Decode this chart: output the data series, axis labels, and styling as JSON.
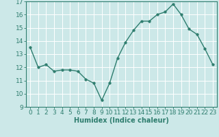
{
  "x": [
    0,
    1,
    2,
    3,
    4,
    5,
    6,
    7,
    8,
    9,
    10,
    11,
    12,
    13,
    14,
    15,
    16,
    17,
    18,
    19,
    20,
    21,
    22,
    23
  ],
  "y": [
    13.5,
    12.0,
    12.2,
    11.7,
    11.8,
    11.8,
    11.7,
    11.1,
    10.8,
    9.5,
    10.8,
    12.7,
    13.9,
    14.8,
    15.5,
    15.5,
    16.0,
    16.2,
    16.8,
    16.0,
    14.9,
    14.5,
    13.4,
    12.2
  ],
  "ylim": [
    9,
    17
  ],
  "yticks": [
    9,
    10,
    11,
    12,
    13,
    14,
    15,
    16,
    17
  ],
  "xticks": [
    0,
    1,
    2,
    3,
    4,
    5,
    6,
    7,
    8,
    9,
    10,
    11,
    12,
    13,
    14,
    15,
    16,
    17,
    18,
    19,
    20,
    21,
    22,
    23
  ],
  "xlabel": "Humidex (Indice chaleur)",
  "line_color": "#2e7d6e",
  "marker_color": "#2e7d6e",
  "bg_color": "#cce8e8",
  "grid_color": "#ffffff",
  "axis_label_fontsize": 7,
  "tick_fontsize": 6.5,
  "marker_size": 2.5,
  "line_width": 1.0
}
